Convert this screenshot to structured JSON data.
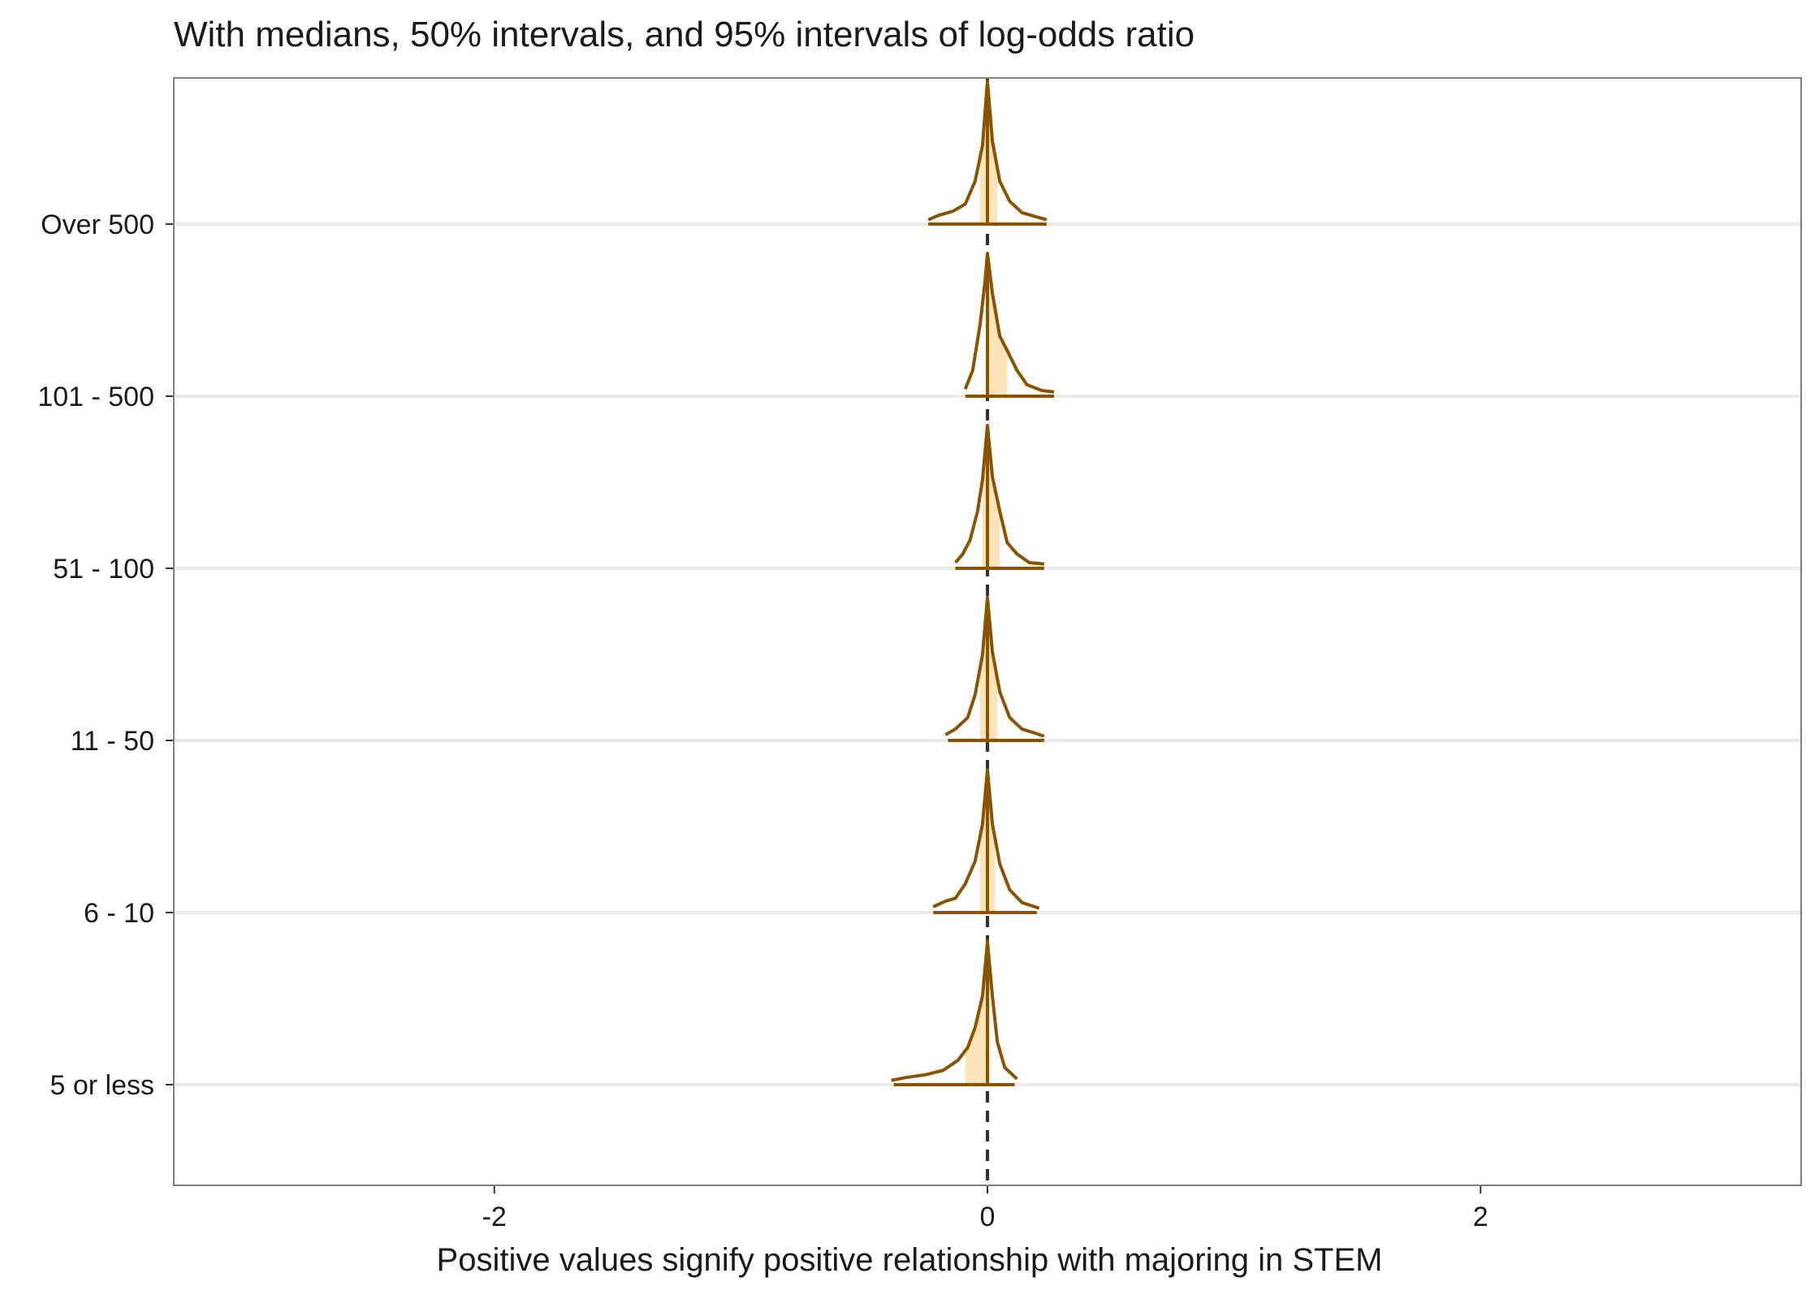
{
  "chart_data": {
    "type": "density-ridges",
    "title": "With medians, 50% intervals, and 95% intervals of log-odds ratio",
    "xlabel": "Positive values signify positive relationship with majoring in STEM",
    "ylabel": "",
    "xlim": [
      -3.3,
      3.3
    ],
    "x_ticks": [
      -2,
      0,
      2
    ],
    "x_tick_labels": [
      "-2",
      "0",
      "2"
    ],
    "reference_line_x": 0,
    "grid": "horizontal",
    "colors": {
      "density_outline": "#8b5200",
      "interval_fill": "#fde3b8",
      "reference_line": "#333333",
      "gridline": "#ebebeb",
      "panel_border": "#7f7f7f"
    },
    "categories": [
      "5 or less",
      "6 - 10",
      "11 - 50",
      "51 - 100",
      "101 - 500",
      "Over 500"
    ],
    "series": [
      {
        "category": "5 or less",
        "median": 0.0,
        "interval_50": [
          -0.09,
          0.01
        ],
        "interval_95": [
          -0.38,
          0.11
        ],
        "density": [
          [
            -0.39,
            0.03
          ],
          [
            -0.33,
            0.05
          ],
          [
            -0.25,
            0.07
          ],
          [
            -0.18,
            0.1
          ],
          [
            -0.12,
            0.17
          ],
          [
            -0.08,
            0.26
          ],
          [
            -0.05,
            0.4
          ],
          [
            -0.02,
            0.62
          ],
          [
            0.0,
            1.0
          ],
          [
            0.02,
            0.62
          ],
          [
            0.04,
            0.3
          ],
          [
            0.07,
            0.12
          ],
          [
            0.12,
            0.04
          ]
        ]
      },
      {
        "category": "6 - 10",
        "median": 0.0,
        "interval_50": [
          -0.03,
          0.03
        ],
        "interval_95": [
          -0.22,
          0.2
        ],
        "density": [
          [
            -0.22,
            0.04
          ],
          [
            -0.17,
            0.08
          ],
          [
            -0.13,
            0.1
          ],
          [
            -0.09,
            0.2
          ],
          [
            -0.05,
            0.36
          ],
          [
            -0.02,
            0.62
          ],
          [
            0.0,
            1.0
          ],
          [
            0.02,
            0.62
          ],
          [
            0.05,
            0.34
          ],
          [
            0.09,
            0.16
          ],
          [
            0.14,
            0.07
          ],
          [
            0.21,
            0.03
          ]
        ]
      },
      {
        "category": "11 - 50",
        "median": 0.0,
        "interval_50": [
          -0.03,
          0.04
        ],
        "interval_95": [
          -0.16,
          0.23
        ],
        "density": [
          [
            -0.17,
            0.04
          ],
          [
            -0.13,
            0.08
          ],
          [
            -0.08,
            0.16
          ],
          [
            -0.05,
            0.32
          ],
          [
            -0.02,
            0.6
          ],
          [
            0.0,
            1.0
          ],
          [
            0.02,
            0.62
          ],
          [
            0.05,
            0.34
          ],
          [
            0.09,
            0.16
          ],
          [
            0.14,
            0.08
          ],
          [
            0.23,
            0.03
          ]
        ]
      },
      {
        "category": "51 - 100",
        "median": 0.0,
        "interval_50": [
          -0.02,
          0.05
        ],
        "interval_95": [
          -0.13,
          0.23
        ],
        "density": [
          [
            -0.13,
            0.04
          ],
          [
            -0.1,
            0.1
          ],
          [
            -0.07,
            0.2
          ],
          [
            -0.04,
            0.4
          ],
          [
            -0.02,
            0.62
          ],
          [
            0.0,
            1.0
          ],
          [
            0.02,
            0.64
          ],
          [
            0.05,
            0.4
          ],
          [
            0.08,
            0.18
          ],
          [
            0.12,
            0.1
          ],
          [
            0.17,
            0.04
          ],
          [
            0.23,
            0.03
          ]
        ]
      },
      {
        "category": "101 - 500",
        "median": 0.0,
        "interval_50": [
          0.0,
          0.08
        ],
        "interval_95": [
          -0.09,
          0.27
        ],
        "density": [
          [
            -0.09,
            0.05
          ],
          [
            -0.06,
            0.18
          ],
          [
            -0.03,
            0.5
          ],
          [
            -0.01,
            0.8
          ],
          [
            0.0,
            1.0
          ],
          [
            0.02,
            0.72
          ],
          [
            0.05,
            0.42
          ],
          [
            0.08,
            0.32
          ],
          [
            0.12,
            0.18
          ],
          [
            0.16,
            0.08
          ],
          [
            0.22,
            0.04
          ],
          [
            0.27,
            0.03
          ]
        ]
      },
      {
        "category": "Over 500",
        "median": 0.0,
        "interval_50": [
          -0.03,
          0.04
        ],
        "interval_95": [
          -0.24,
          0.24
        ],
        "density": [
          [
            -0.24,
            0.03
          ],
          [
            -0.2,
            0.06
          ],
          [
            -0.14,
            0.09
          ],
          [
            -0.09,
            0.14
          ],
          [
            -0.05,
            0.3
          ],
          [
            -0.02,
            0.55
          ],
          [
            0.0,
            1.0
          ],
          [
            0.02,
            0.58
          ],
          [
            0.05,
            0.3
          ],
          [
            0.09,
            0.16
          ],
          [
            0.14,
            0.08
          ],
          [
            0.2,
            0.05
          ],
          [
            0.24,
            0.03
          ]
        ]
      }
    ]
  }
}
